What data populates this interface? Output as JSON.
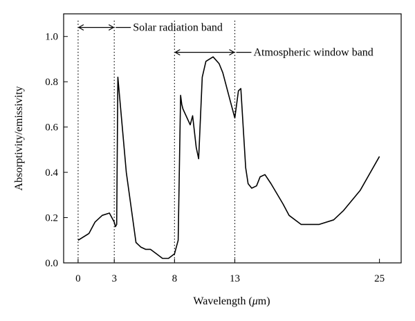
{
  "chart_data": {
    "type": "line",
    "xlabel_prefix": "Wavelength (",
    "xlabel_unit": "μ",
    "xlabel_suffix": "m)",
    "ylabel": "Absorptivity/emissivity",
    "xticks": [
      {
        "label": "0",
        "value": 0
      },
      {
        "label": "3",
        "value": 3
      },
      {
        "label": "8",
        "value": 8
      },
      {
        "label": "13",
        "value": 13
      },
      {
        "label": "25",
        "value": 25
      }
    ],
    "yticks": [
      "0.0",
      "0.2",
      "0.4",
      "0.6",
      "0.8",
      "1.0"
    ],
    "ylim": [
      0,
      1.1
    ],
    "grid": false,
    "vertical_reference_lines": [
      0,
      3,
      8,
      13
    ],
    "annotations": [
      {
        "text": "Solar radiation band",
        "x_from": 0,
        "x_to": 3,
        "y": 1.04
      },
      {
        "text": "Atmospheric window band",
        "x_from": 8,
        "x_to": 13,
        "y": 0.93
      }
    ],
    "series": [
      {
        "x": [
          0,
          0.9,
          1.4,
          2.0,
          2.6,
          3.0,
          3.1,
          3.2,
          3.3,
          3.5,
          4.0,
          4.8,
          5.2,
          5.6,
          6.0,
          6.5,
          7.0,
          7.5,
          8.0,
          8.3,
          8.5,
          8.6,
          8.7,
          9.3,
          9.5,
          9.8,
          10.0,
          10.3,
          10.6,
          11.2,
          11.7,
          12.0,
          12.6,
          13.0,
          13.3,
          13.5,
          13.9,
          14.1,
          14.4,
          14.8,
          15.1,
          15.5,
          16.0,
          17.0,
          17.5,
          18.5,
          20.0,
          21.2,
          22.0,
          23.4,
          25.0
        ],
        "y": [
          0.1,
          0.13,
          0.18,
          0.21,
          0.22,
          0.18,
          0.16,
          0.17,
          0.82,
          0.7,
          0.4,
          0.09,
          0.07,
          0.06,
          0.06,
          0.04,
          0.02,
          0.02,
          0.04,
          0.1,
          0.74,
          0.7,
          0.68,
          0.61,
          0.65,
          0.51,
          0.46,
          0.82,
          0.89,
          0.91,
          0.88,
          0.84,
          0.72,
          0.64,
          0.76,
          0.77,
          0.42,
          0.35,
          0.33,
          0.34,
          0.38,
          0.39,
          0.35,
          0.26,
          0.21,
          0.17,
          0.17,
          0.19,
          0.23,
          0.32,
          0.47
        ]
      }
    ]
  }
}
